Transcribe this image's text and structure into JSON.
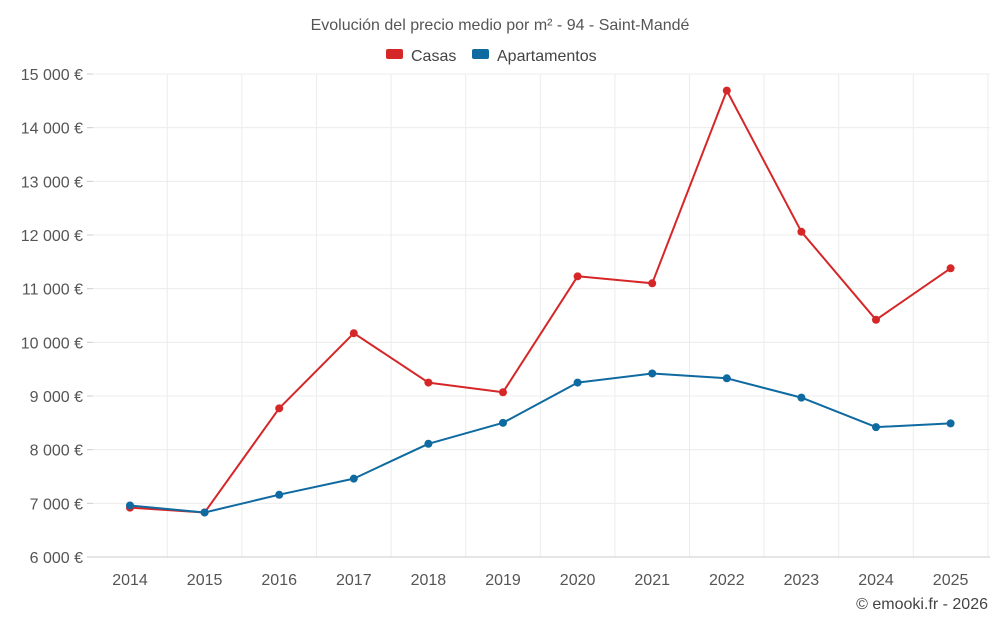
{
  "chart_data": {
    "type": "line",
    "title": "Evolución del precio medio por m² - 94 - Saint-Mandé",
    "xlabel": "",
    "ylabel": "",
    "categories": [
      "2014",
      "2015",
      "2016",
      "2017",
      "2018",
      "2019",
      "2020",
      "2021",
      "2022",
      "2023",
      "2024",
      "2025"
    ],
    "ylim": [
      6000,
      15000
    ],
    "yticks": [
      6000,
      7000,
      8000,
      9000,
      10000,
      11000,
      12000,
      13000,
      14000,
      15000
    ],
    "ytick_labels": [
      "6 000 €",
      "7 000 €",
      "8 000 €",
      "9 000 €",
      "10 000 €",
      "11 000 €",
      "12 000 €",
      "13 000 €",
      "14 000 €",
      "15 000 €"
    ],
    "grid": true,
    "legend_position": "top-center",
    "series": [
      {
        "name": "Casas",
        "color": "#d62728",
        "values": [
          6920,
          6830,
          8770,
          10170,
          9250,
          9070,
          11230,
          11100,
          14690,
          12060,
          10420,
          11380
        ]
      },
      {
        "name": "Apartamentos",
        "color": "#0e6aa0",
        "values": [
          6960,
          6830,
          7160,
          7460,
          8110,
          8500,
          9250,
          9420,
          9330,
          8970,
          8420,
          8490
        ]
      }
    ],
    "credit": "© emooki.fr - 2026"
  }
}
